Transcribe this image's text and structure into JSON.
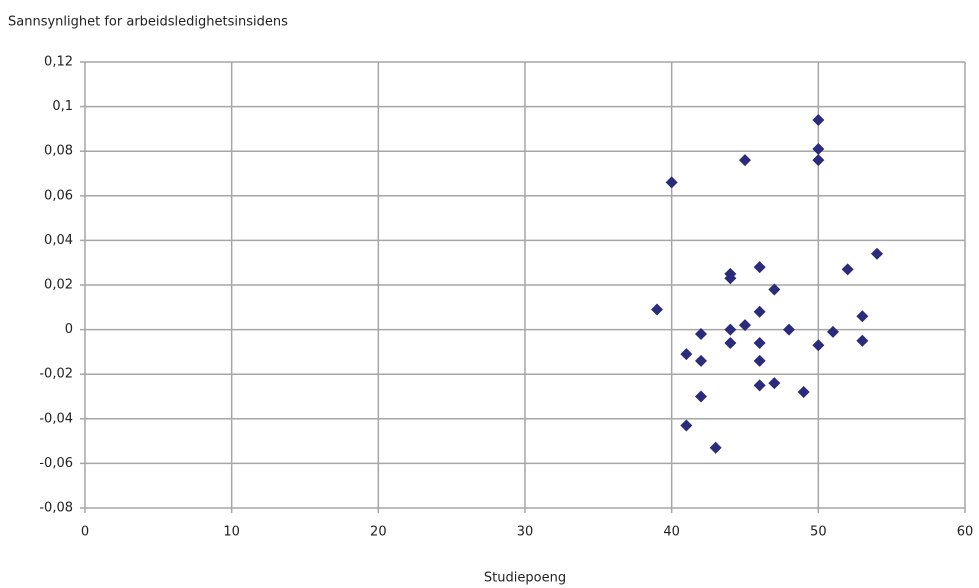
{
  "chart_data": {
    "type": "scatter",
    "ylabel": "Sannsynlighet for arbeidsledighetsinsidens",
    "xlabel": "Studiepoeng",
    "x": [
      39,
      40,
      41,
      41,
      42,
      42,
      42,
      43,
      44,
      44,
      44,
      44,
      45,
      45,
      46,
      46,
      46,
      46,
      46,
      47,
      47,
      48,
      49,
      50,
      50,
      50,
      50,
      51,
      52,
      53,
      53,
      54
    ],
    "series": [
      {
        "color": "#2b2b7b",
        "values": [
          0.009,
          0.066,
          -0.011,
          -0.043,
          -0.002,
          -0.014,
          -0.03,
          -0.053,
          0.025,
          0.023,
          0.0,
          -0.006,
          0.076,
          0.002,
          0.028,
          0.008,
          -0.006,
          -0.014,
          -0.025,
          0.018,
          -0.024,
          0.0,
          -0.028,
          0.094,
          0.081,
          0.076,
          -0.007,
          -0.001,
          0.027,
          0.006,
          -0.005,
          0.034
        ]
      }
    ],
    "xlim": [
      0,
      60
    ],
    "xticks": [
      0,
      10,
      20,
      30,
      40,
      50,
      60
    ],
    "ylim": [
      -0.08,
      0.12
    ],
    "yticks": [
      {
        "value": -0.08,
        "label": "-0,08"
      },
      {
        "value": -0.06,
        "label": "-0,06"
      },
      {
        "value": -0.04,
        "label": "-0,04"
      },
      {
        "value": -0.02,
        "label": "-0,02"
      },
      0,
      {
        "value": 0.02,
        "label": "0,02"
      },
      {
        "value": 0.04,
        "label": "0,04"
      },
      {
        "value": 0.06,
        "label": "0,06"
      },
      {
        "value": 0.08,
        "label": "0,08"
      },
      {
        "value": 0.1,
        "label": "0,1"
      },
      {
        "value": 0.12,
        "label": "0,12"
      }
    ],
    "grid": true
  }
}
